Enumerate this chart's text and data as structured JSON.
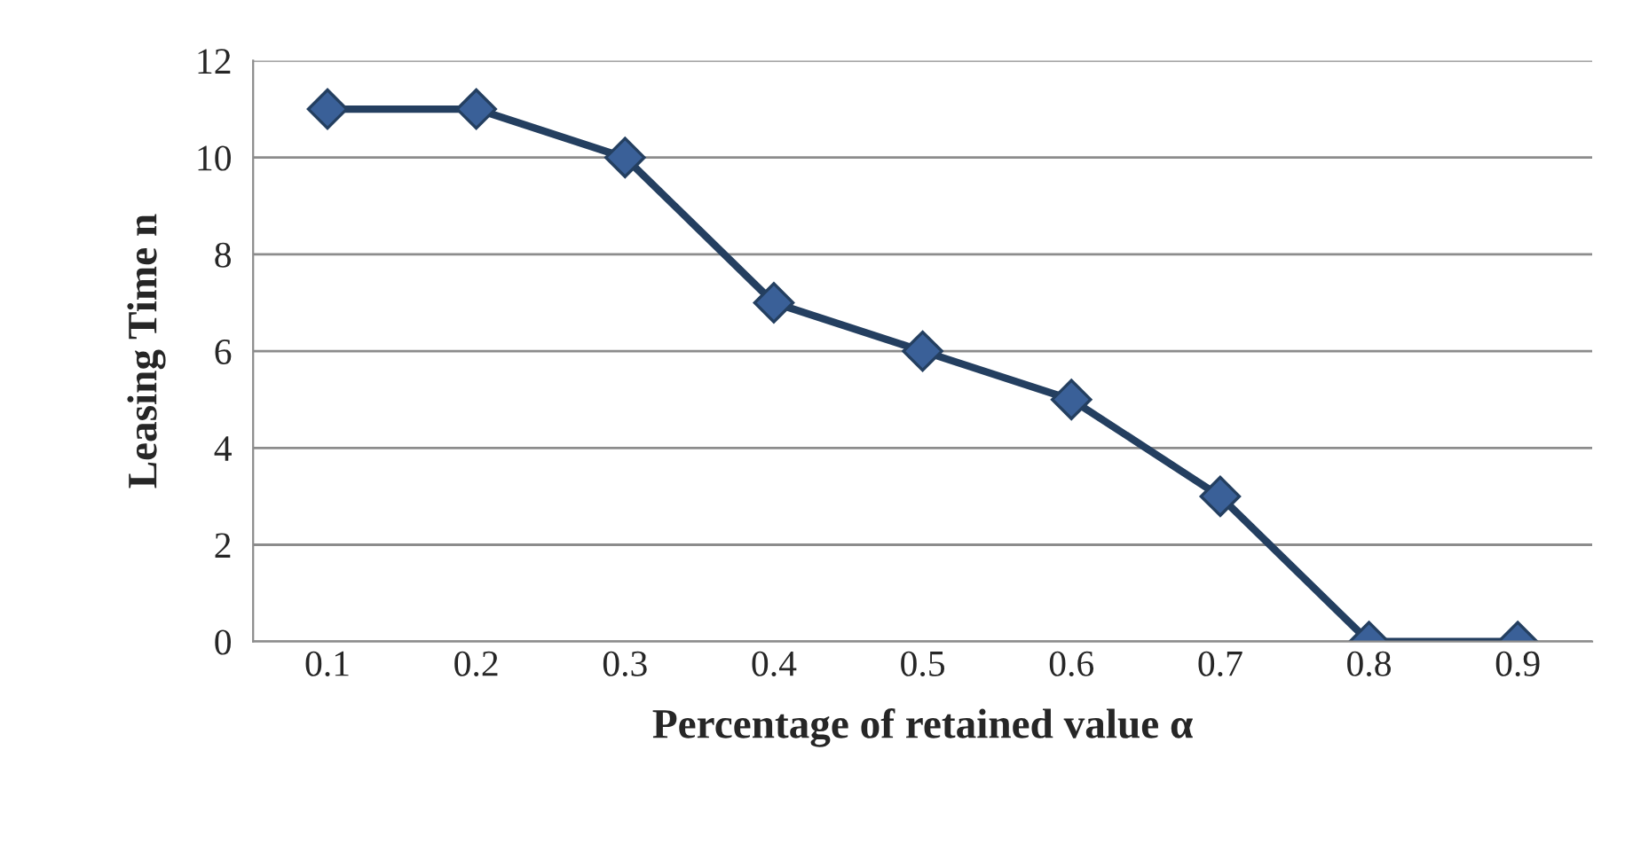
{
  "chart_data": {
    "type": "line",
    "xlabel": "Percentage of retained value α",
    "ylabel": "Leasing Time n",
    "categories": [
      "0.1",
      "0.2",
      "0.3",
      "0.4",
      "0.5",
      "0.6",
      "0.7",
      "0.8",
      "0.9"
    ],
    "series": [
      {
        "color": "#243f60",
        "values": [
          11,
          11,
          10,
          7,
          6,
          5,
          3,
          0,
          0
        ]
      }
    ],
    "ylim": [
      0,
      12
    ],
    "yticks": [
      0,
      2,
      4,
      6,
      8,
      10,
      12
    ],
    "grid": "y",
    "marker": "diamond",
    "line_style": "solid"
  }
}
